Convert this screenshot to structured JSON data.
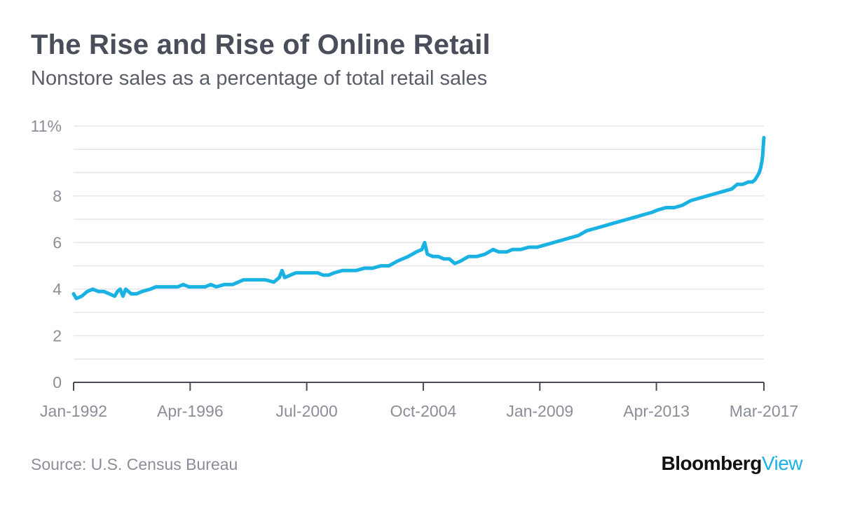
{
  "header": {
    "title": "The Rise and Rise of Online Retail",
    "subtitle": "Nonstore sales as a percentage of total retail sales"
  },
  "footer": {
    "source": "Source: U.S. Census Bureau",
    "brand_primary": "Bloomberg",
    "brand_secondary": "View"
  },
  "colors": {
    "line": "#1ab2e3",
    "brand_accent": "#1ab2e3",
    "grid": "#e6e6ea",
    "axis": "#4a4d5a"
  },
  "chart_data": {
    "type": "line",
    "title": "The Rise and Rise of Online Retail",
    "subtitle": "Nonstore sales as a percentage of total retail sales",
    "xlabel": "",
    "ylabel": "",
    "ylim": [
      0,
      11
    ],
    "y_ticks": [
      {
        "value": 0,
        "label": "0"
      },
      {
        "value": 2,
        "label": "2"
      },
      {
        "value": 4,
        "label": "4"
      },
      {
        "value": 6,
        "label": "6"
      },
      {
        "value": 8,
        "label": "8"
      },
      {
        "value": 11,
        "label": "11%"
      }
    ],
    "gridlines": [
      1,
      2,
      3,
      4,
      5,
      6,
      7,
      8,
      9,
      10,
      11
    ],
    "x_range": [
      1992.0,
      2017.17
    ],
    "x_ticks": [
      {
        "value": 1992.0,
        "label": "Jan-1992"
      },
      {
        "value": 1996.25,
        "label": "Apr-1996"
      },
      {
        "value": 2000.5,
        "label": "Jul-2000"
      },
      {
        "value": 2004.75,
        "label": "Oct-2004"
      },
      {
        "value": 2009.0,
        "label": "Jan-2009"
      },
      {
        "value": 2013.25,
        "label": "Apr-2013"
      },
      {
        "value": 2017.17,
        "label": "Mar-2017"
      }
    ],
    "series": [
      {
        "name": "Nonstore sales % of total retail",
        "points": [
          [
            1992.0,
            3.8
          ],
          [
            1992.1,
            3.6
          ],
          [
            1992.3,
            3.7
          ],
          [
            1992.5,
            3.9
          ],
          [
            1992.7,
            4.0
          ],
          [
            1992.9,
            3.9
          ],
          [
            1993.1,
            3.9
          ],
          [
            1993.3,
            3.8
          ],
          [
            1993.5,
            3.7
          ],
          [
            1993.6,
            3.9
          ],
          [
            1993.7,
            4.0
          ],
          [
            1993.8,
            3.7
          ],
          [
            1993.9,
            4.0
          ],
          [
            1994.1,
            3.8
          ],
          [
            1994.3,
            3.8
          ],
          [
            1994.5,
            3.9
          ],
          [
            1994.8,
            4.0
          ],
          [
            1995.0,
            4.1
          ],
          [
            1995.4,
            4.1
          ],
          [
            1995.8,
            4.1
          ],
          [
            1996.0,
            4.2
          ],
          [
            1996.2,
            4.1
          ],
          [
            1996.5,
            4.1
          ],
          [
            1996.8,
            4.1
          ],
          [
            1997.0,
            4.2
          ],
          [
            1997.2,
            4.1
          ],
          [
            1997.5,
            4.2
          ],
          [
            1997.8,
            4.2
          ],
          [
            1998.0,
            4.3
          ],
          [
            1998.2,
            4.4
          ],
          [
            1998.5,
            4.4
          ],
          [
            1998.8,
            4.4
          ],
          [
            1999.0,
            4.4
          ],
          [
            1999.3,
            4.3
          ],
          [
            1999.5,
            4.5
          ],
          [
            1999.6,
            4.8
          ],
          [
            1999.7,
            4.5
          ],
          [
            1999.9,
            4.6
          ],
          [
            2000.1,
            4.7
          ],
          [
            2000.5,
            4.7
          ],
          [
            2000.9,
            4.7
          ],
          [
            2001.1,
            4.6
          ],
          [
            2001.3,
            4.6
          ],
          [
            2001.5,
            4.7
          ],
          [
            2001.8,
            4.8
          ],
          [
            2002.0,
            4.8
          ],
          [
            2002.3,
            4.8
          ],
          [
            2002.6,
            4.9
          ],
          [
            2002.9,
            4.9
          ],
          [
            2003.2,
            5.0
          ],
          [
            2003.5,
            5.0
          ],
          [
            2003.8,
            5.2
          ],
          [
            2004.2,
            5.4
          ],
          [
            2004.5,
            5.6
          ],
          [
            2004.7,
            5.7
          ],
          [
            2004.8,
            6.0
          ],
          [
            2004.9,
            5.5
          ],
          [
            2005.1,
            5.4
          ],
          [
            2005.3,
            5.4
          ],
          [
            2005.5,
            5.3
          ],
          [
            2005.7,
            5.3
          ],
          [
            2005.9,
            5.1
          ],
          [
            2006.1,
            5.2
          ],
          [
            2006.4,
            5.4
          ],
          [
            2006.7,
            5.4
          ],
          [
            2007.0,
            5.5
          ],
          [
            2007.3,
            5.7
          ],
          [
            2007.5,
            5.6
          ],
          [
            2007.8,
            5.6
          ],
          [
            2008.0,
            5.7
          ],
          [
            2008.3,
            5.7
          ],
          [
            2008.6,
            5.8
          ],
          [
            2008.9,
            5.8
          ],
          [
            2009.2,
            5.9
          ],
          [
            2009.5,
            6.0
          ],
          [
            2009.8,
            6.1
          ],
          [
            2010.1,
            6.2
          ],
          [
            2010.4,
            6.3
          ],
          [
            2010.7,
            6.5
          ],
          [
            2011.0,
            6.6
          ],
          [
            2011.3,
            6.7
          ],
          [
            2011.6,
            6.8
          ],
          [
            2011.9,
            6.9
          ],
          [
            2012.2,
            7.0
          ],
          [
            2012.5,
            7.1
          ],
          [
            2012.8,
            7.2
          ],
          [
            2013.1,
            7.3
          ],
          [
            2013.3,
            7.4
          ],
          [
            2013.6,
            7.5
          ],
          [
            2013.9,
            7.5
          ],
          [
            2014.2,
            7.6
          ],
          [
            2014.5,
            7.8
          ],
          [
            2014.8,
            7.9
          ],
          [
            2015.1,
            8.0
          ],
          [
            2015.4,
            8.1
          ],
          [
            2015.7,
            8.2
          ],
          [
            2016.0,
            8.3
          ],
          [
            2016.2,
            8.5
          ],
          [
            2016.4,
            8.5
          ],
          [
            2016.6,
            8.6
          ],
          [
            2016.75,
            8.6
          ],
          [
            2016.85,
            8.7
          ],
          [
            2016.95,
            8.9
          ],
          [
            2017.0,
            9.0
          ],
          [
            2017.05,
            9.2
          ],
          [
            2017.1,
            9.5
          ],
          [
            2017.13,
            9.8
          ],
          [
            2017.15,
            10.2
          ],
          [
            2017.17,
            10.5
          ]
        ]
      }
    ]
  }
}
